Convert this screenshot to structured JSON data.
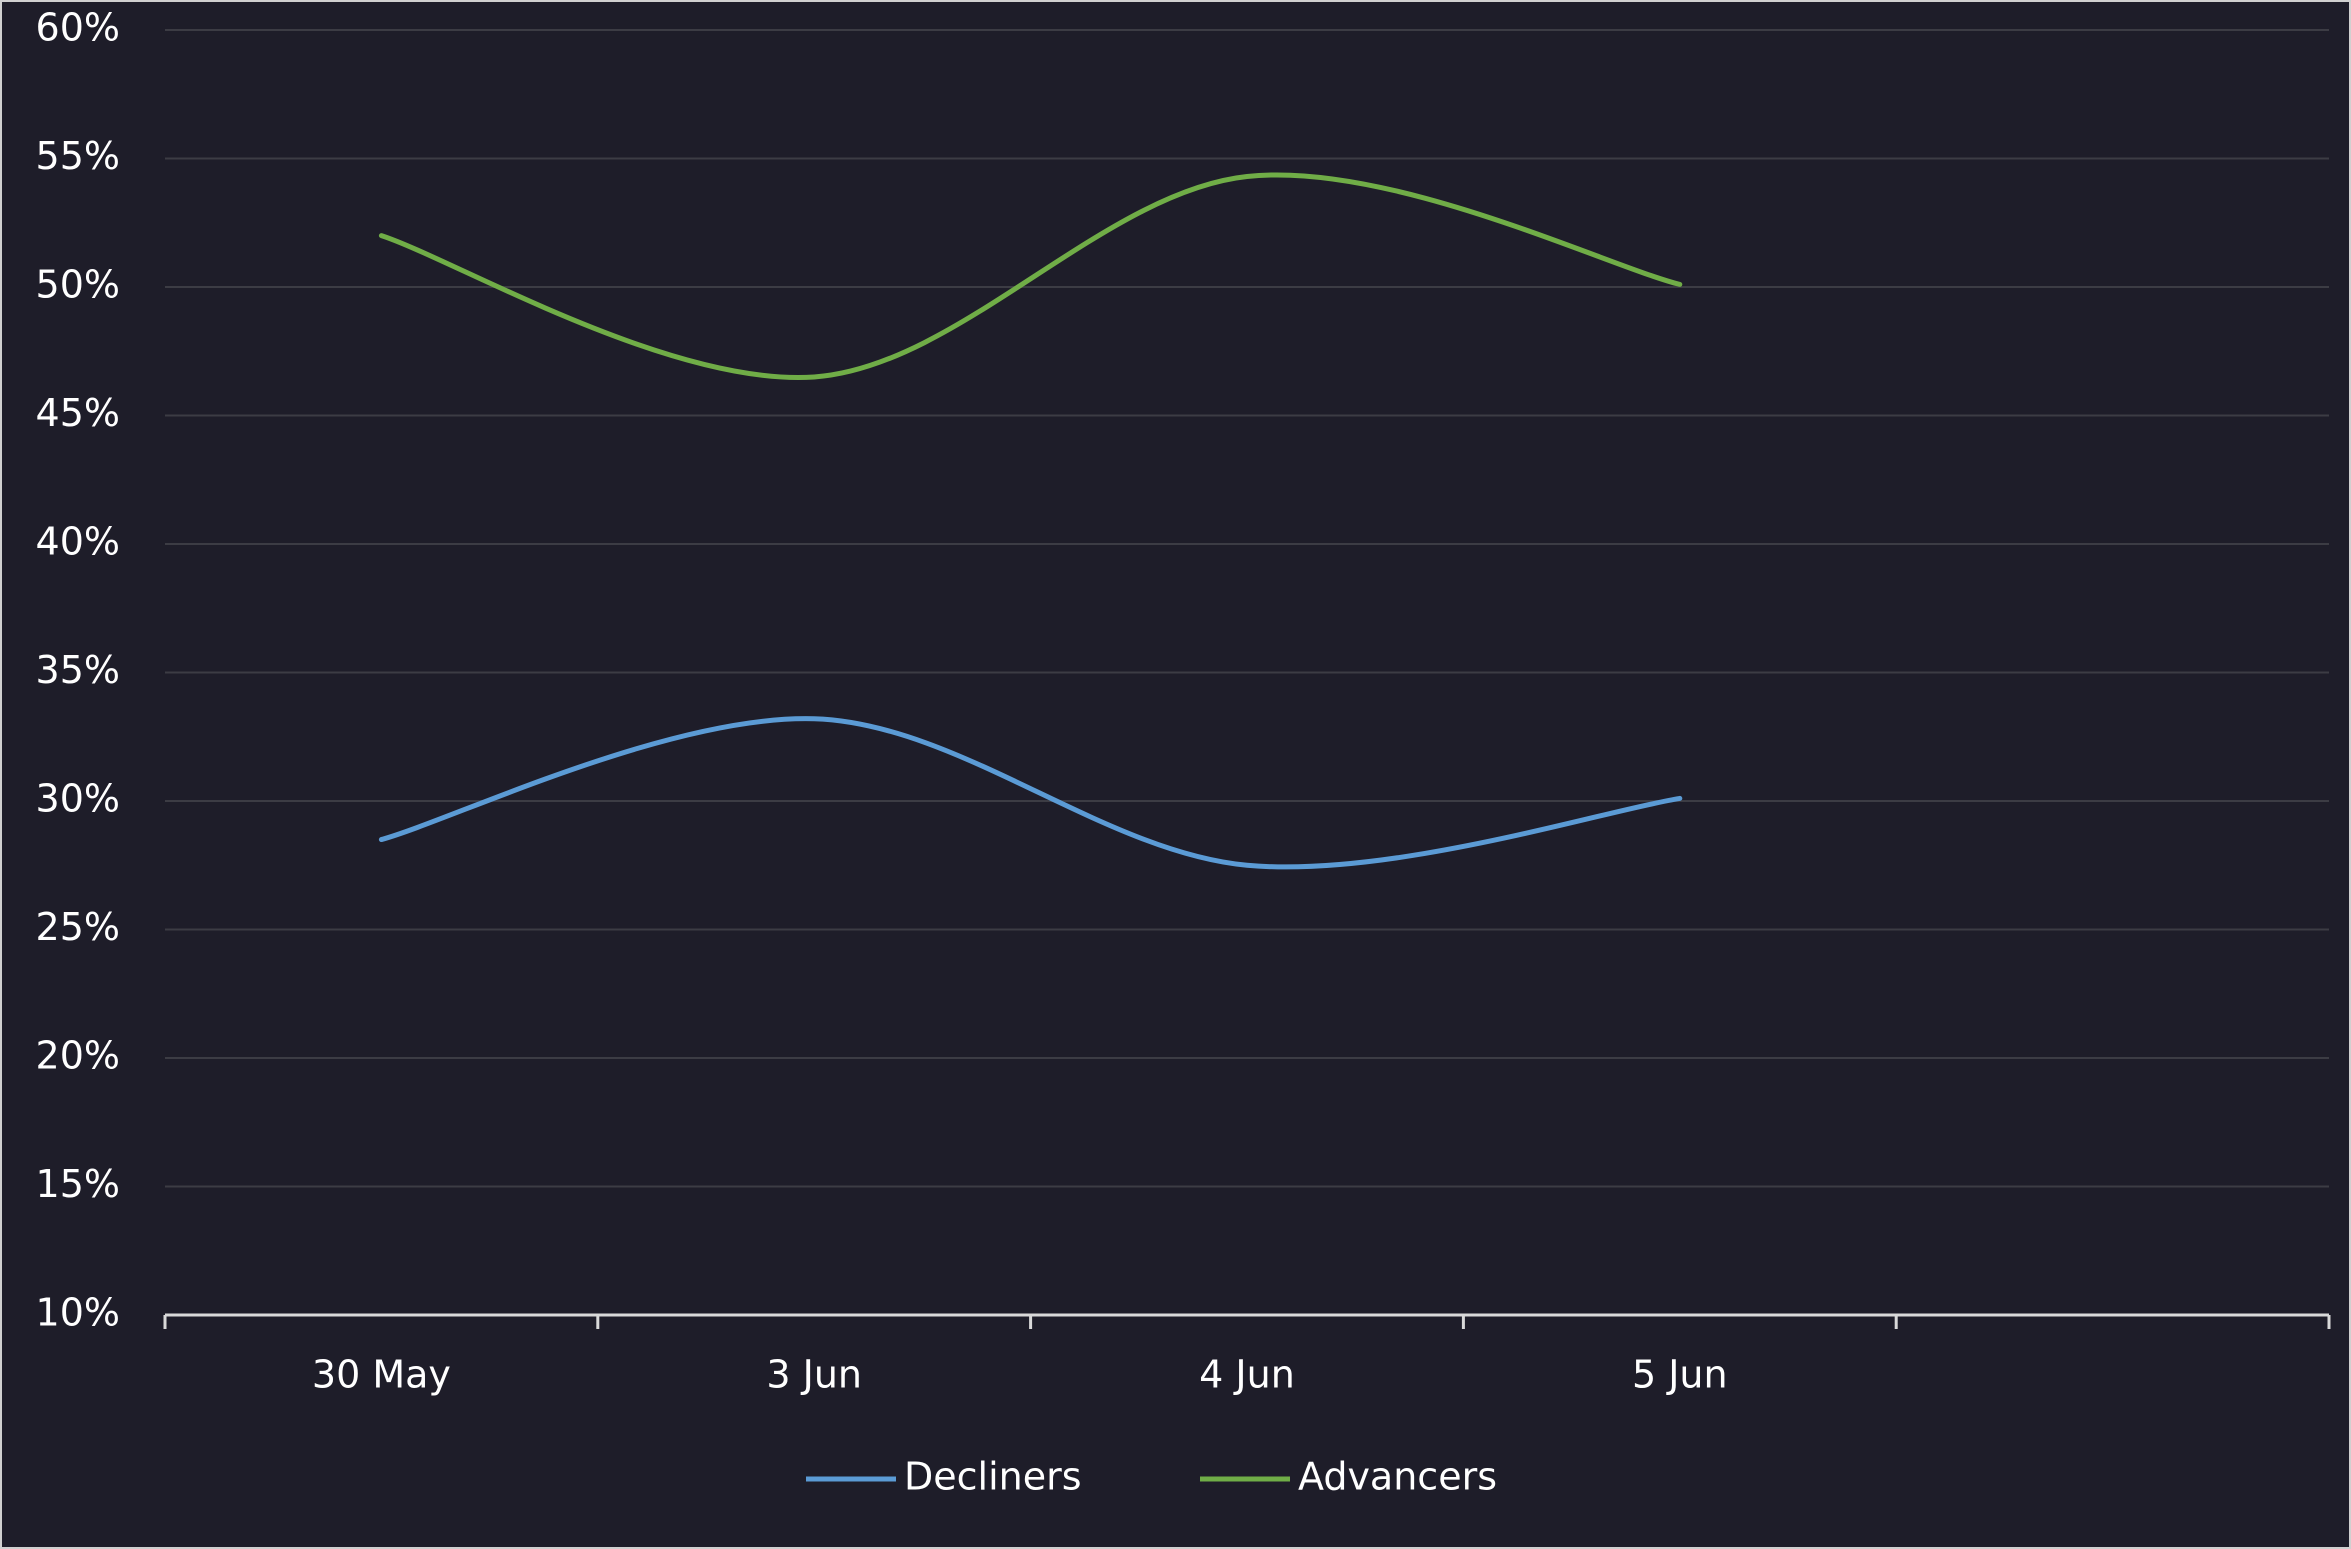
{
  "chart_data": {
    "type": "line",
    "categories": [
      "30 May",
      "3 Jun",
      "4 Jun",
      "5 Jun",
      null
    ],
    "series": [
      {
        "name": "Decliners",
        "color": "#5b9bd5",
        "values": [
          28.5,
          33.2,
          27.5,
          30.1,
          null
        ]
      },
      {
        "name": "Advancers",
        "color": "#70ad47",
        "values": [
          52.0,
          46.5,
          54.3,
          50.1,
          null
        ]
      }
    ],
    "ylim": [
      10,
      60
    ],
    "yticks": [
      {
        "value": 10,
        "label": "10%"
      },
      {
        "value": 15,
        "label": "15%"
      },
      {
        "value": 20,
        "label": "20%"
      },
      {
        "value": 25,
        "label": "25%"
      },
      {
        "value": 30,
        "label": "30%"
      },
      {
        "value": 35,
        "label": "35%"
      },
      {
        "value": 40,
        "label": "40%"
      },
      {
        "value": 45,
        "label": "45%"
      },
      {
        "value": 50,
        "label": "50%"
      },
      {
        "value": 55,
        "label": "55%"
      },
      {
        "value": 60,
        "label": "60%"
      }
    ],
    "grid": true,
    "smooth": true,
    "legend": "bottom"
  }
}
